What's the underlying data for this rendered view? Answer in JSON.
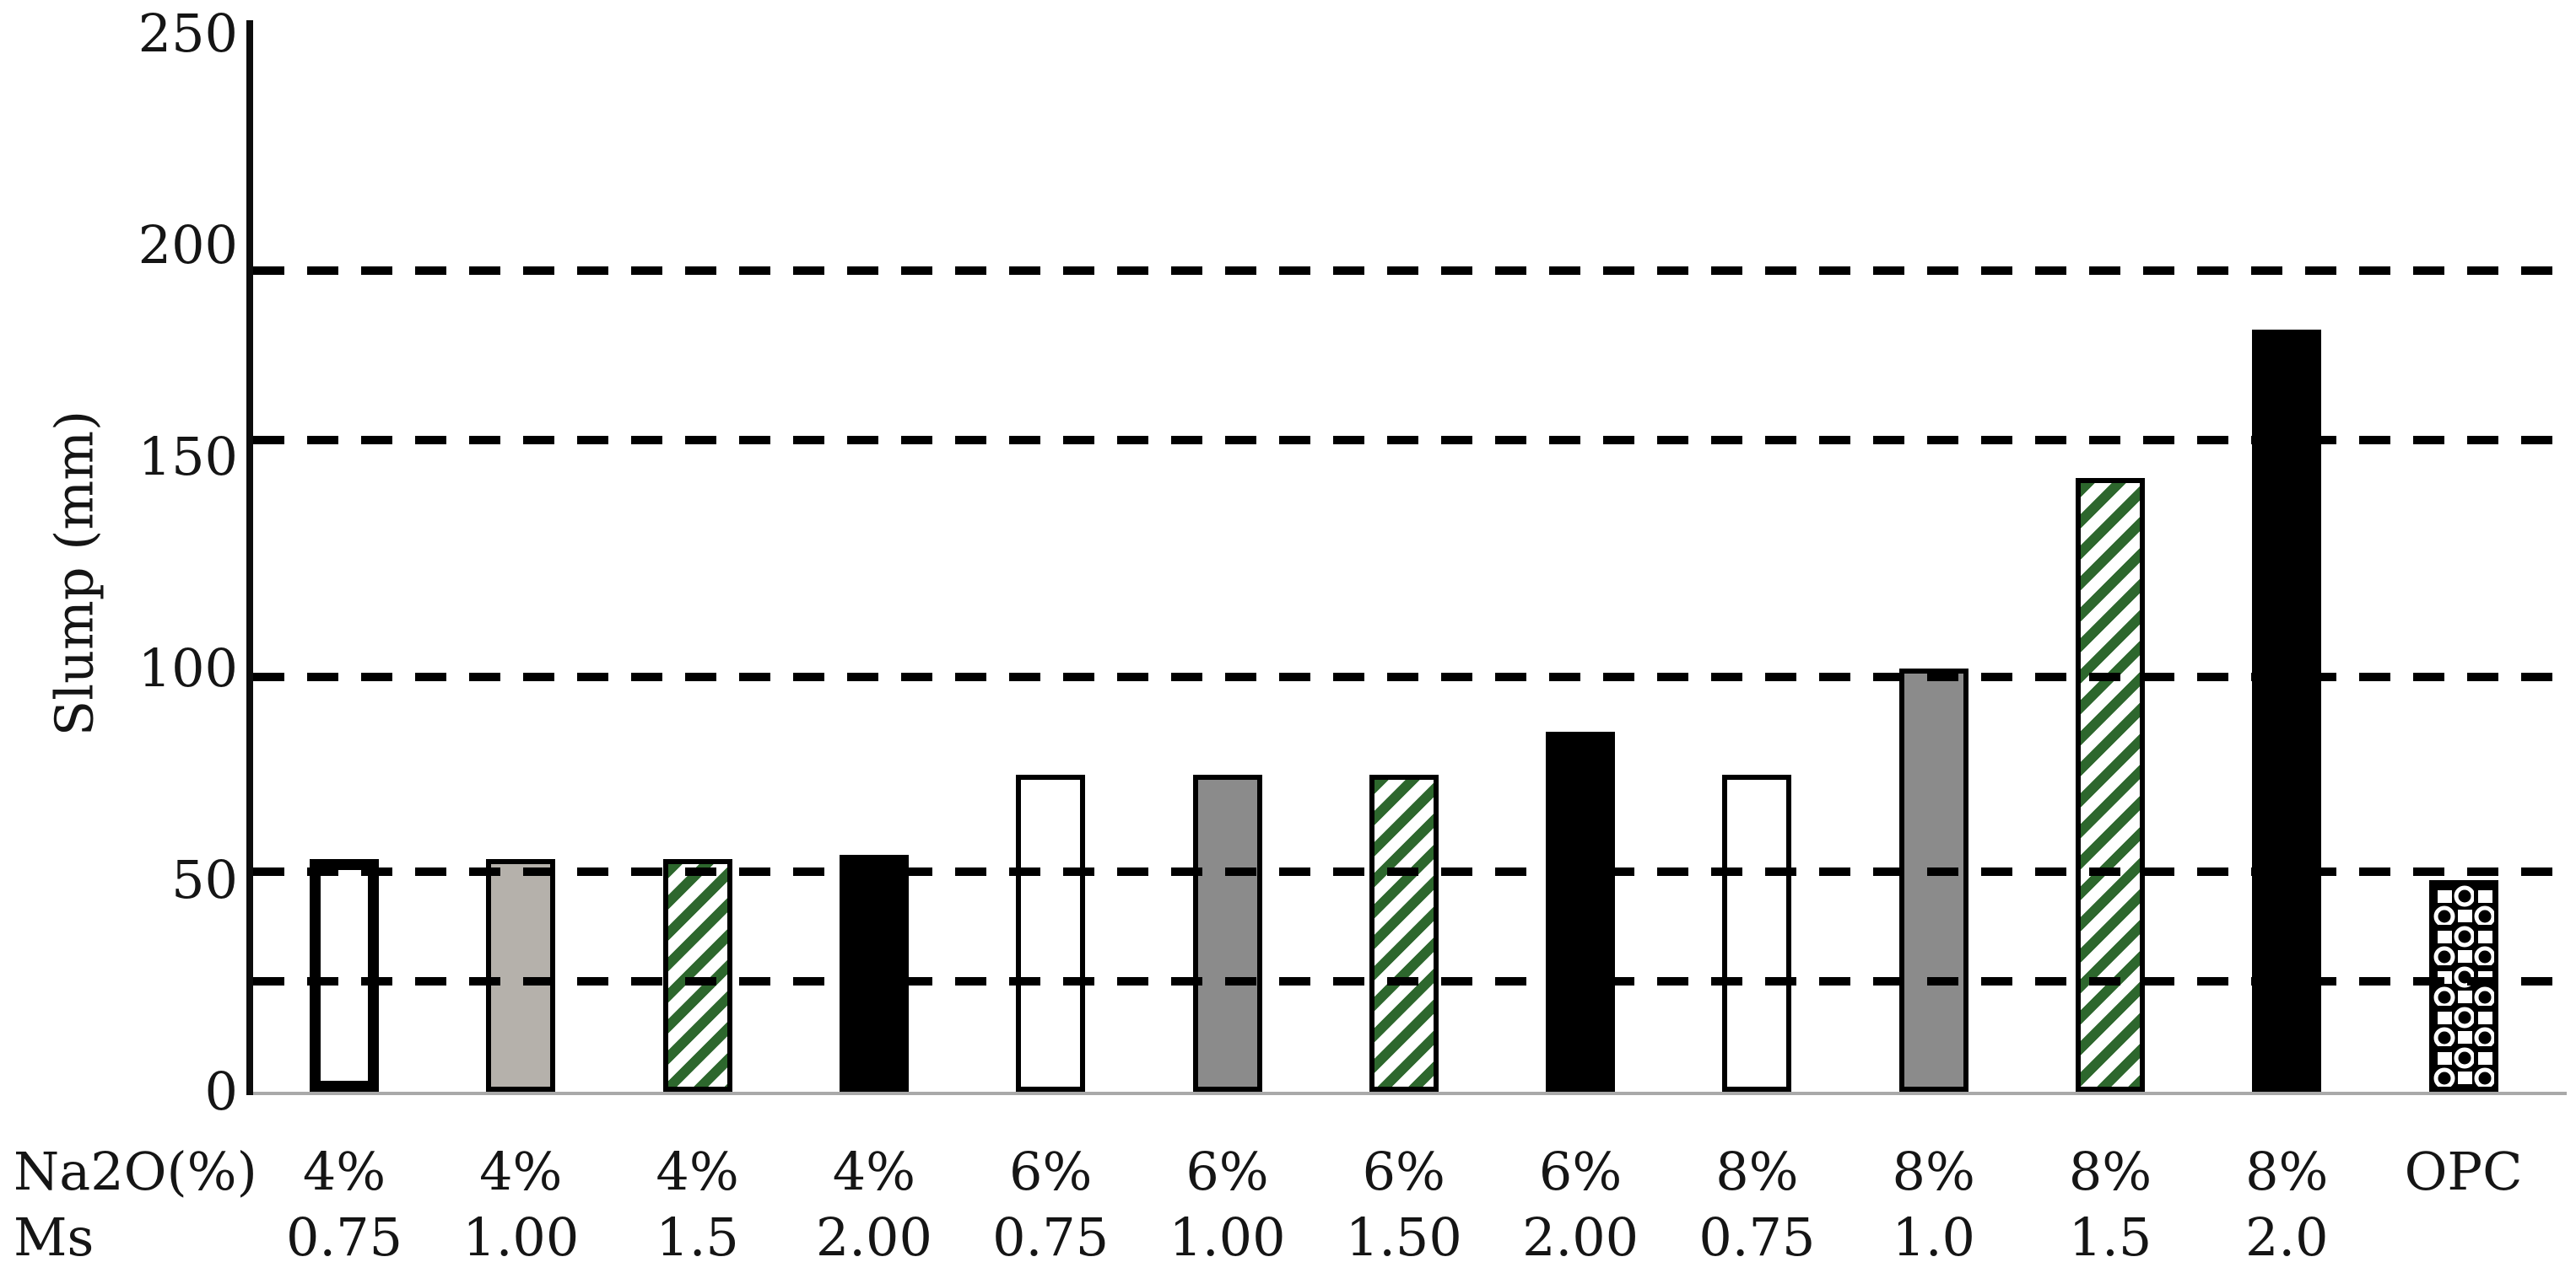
{
  "figure": {
    "background": "#ffffff",
    "kind": "scanned bar chart figure"
  },
  "chart_data": {
    "type": "bar",
    "title": "",
    "ylabel": "Slump (mm)",
    "xlabel": "",
    "ylim": [
      0,
      250
    ],
    "yticks": [
      0,
      50,
      100,
      150,
      200,
      250
    ],
    "gridlines_y": [
      26,
      52,
      98,
      154,
      194
    ],
    "grid_style": "dashed",
    "legend_position": "none",
    "x_header_rows": [
      "Na2O(%)",
      "Ms"
    ],
    "categories": [
      {
        "na2o": "4%",
        "ms": "0.75"
      },
      {
        "na2o": "4%",
        "ms": "1.00"
      },
      {
        "na2o": "4%",
        "ms": "1.5"
      },
      {
        "na2o": "4%",
        "ms": "2.00"
      },
      {
        "na2o": "6%",
        "ms": "0.75"
      },
      {
        "na2o": "6%",
        "ms": "1.00"
      },
      {
        "na2o": "6%",
        "ms": "1.50"
      },
      {
        "na2o": "6%",
        "ms": "2.00"
      },
      {
        "na2o": "8%",
        "ms": "0.75"
      },
      {
        "na2o": "8%",
        "ms": "1.0"
      },
      {
        "na2o": "8%",
        "ms": "1.5"
      },
      {
        "na2o": "8%",
        "ms": "2.0"
      },
      {
        "na2o": "OPC",
        "ms": ""
      }
    ],
    "series": [
      {
        "name": "Slump",
        "values": [
          55,
          55,
          55,
          56,
          75,
          75,
          75,
          85,
          75,
          100,
          145,
          180,
          50
        ]
      }
    ],
    "bar_styles": [
      "white-thick",
      "silver",
      "green-hatch",
      "black",
      "white",
      "gray",
      "green-hatch",
      "black",
      "white",
      "gray",
      "green-hatch",
      "black",
      "opc-circles"
    ],
    "colors": {
      "black": "#000000",
      "white": "#ffffff",
      "silver": "#b5b1ab",
      "gray": "#8b8b8b",
      "hatch_green": "#2d672d",
      "baseline_gray": "#a9a9a9",
      "text": "#151515"
    }
  }
}
